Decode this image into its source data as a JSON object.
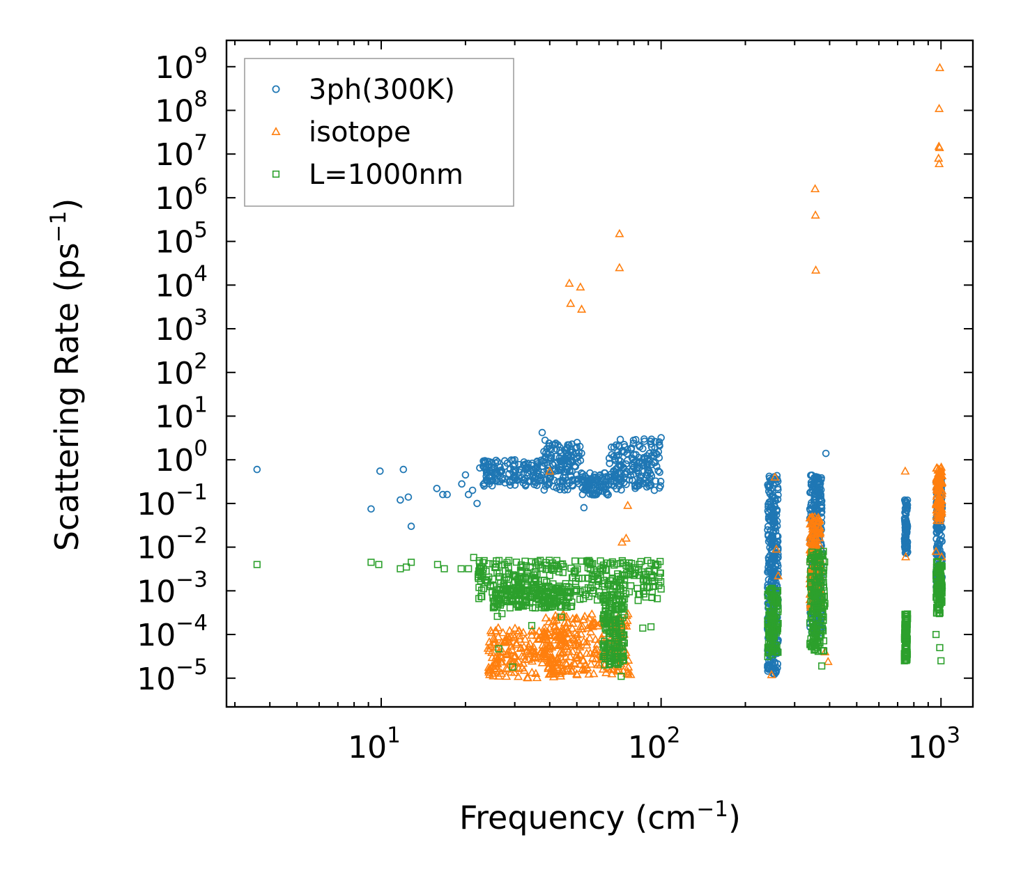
{
  "chart_data": {
    "type": "scatter",
    "xscale": "log",
    "yscale": "log",
    "xlim": [
      2.8,
      1300
    ],
    "ylim": [
      2.2e-06,
      4000000000
    ],
    "xlabel": "Frequency (cm",
    "xlabel_sup": "−1",
    "xlabel_end": ")",
    "ylabel": "Scattering Rate (ps",
    "ylabel_sup": "−1",
    "ylabel_end": ")",
    "x_ticks": [
      {
        "base": "10",
        "exp": "1",
        "value": 10
      },
      {
        "base": "10",
        "exp": "2",
        "value": 100
      },
      {
        "base": "10",
        "exp": "3",
        "value": 1000
      }
    ],
    "y_ticks": [
      {
        "base": "10",
        "exp": "9",
        "value": 1000000000.0
      },
      {
        "base": "10",
        "exp": "8",
        "value": 100000000.0
      },
      {
        "base": "10",
        "exp": "7",
        "value": 10000000.0
      },
      {
        "base": "10",
        "exp": "6",
        "value": 1000000.0
      },
      {
        "base": "10",
        "exp": "5",
        "value": 100000.0
      },
      {
        "base": "10",
        "exp": "4",
        "value": 10000.0
      },
      {
        "base": "10",
        "exp": "3",
        "value": 1000.0
      },
      {
        "base": "10",
        "exp": "2",
        "value": 100.0
      },
      {
        "base": "10",
        "exp": "1",
        "value": 10
      },
      {
        "base": "10",
        "exp": "0",
        "value": 1
      },
      {
        "base": "10",
        "exp": "−1",
        "value": 0.1
      },
      {
        "base": "10",
        "exp": "−2",
        "value": 0.01
      },
      {
        "base": "10",
        "exp": "−3",
        "value": 0.001
      },
      {
        "base": "10",
        "exp": "−4",
        "value": 0.0001
      },
      {
        "base": "10",
        "exp": "−5",
        "value": 1e-05
      }
    ],
    "legend_position": "top-left",
    "series": [
      {
        "name": "3ph(300K)",
        "marker": "circle",
        "color": "#1f77b4",
        "points": [
          [
            3.6,
            0.6
          ],
          [
            9.2,
            0.075
          ],
          [
            9.9,
            0.55
          ],
          [
            11.7,
            0.12
          ],
          [
            12.0,
            0.6
          ],
          [
            12.5,
            0.14
          ],
          [
            12.8,
            0.03
          ],
          [
            15.8,
            0.22
          ],
          [
            16.6,
            0.16
          ],
          [
            17.2,
            0.16
          ],
          [
            19.4,
            0.28
          ],
          [
            20.0,
            0.45
          ],
          [
            20.5,
            0.16
          ],
          [
            21.2,
            0.2
          ],
          [
            22.0,
            0.1
          ],
          [
            22.5,
            0.65
          ],
          [
            24.0,
            0.32
          ],
          [
            25.0,
            0.5
          ],
          [
            27.0,
            0.35
          ],
          [
            30.0,
            0.8
          ],
          [
            33.0,
            0.6
          ],
          [
            36.0,
            0.5
          ],
          [
            37.6,
            4.2
          ],
          [
            38.5,
            2.8
          ],
          [
            40.0,
            1.8
          ],
          [
            42.0,
            1.2
          ],
          [
            44.0,
            0.9
          ],
          [
            46.0,
            0.7
          ],
          [
            48.0,
            0.55
          ],
          [
            50.0,
            0.45
          ],
          [
            52.0,
            0.35
          ],
          [
            53.0,
            0.08
          ],
          [
            55.0,
            0.3
          ],
          [
            58.0,
            0.3
          ],
          [
            62.0,
            0.35
          ],
          [
            66.0,
            0.4
          ],
          [
            70.0,
            0.5
          ],
          [
            75.0,
            0.8
          ],
          [
            80.0,
            1.3
          ],
          [
            86.0,
            1.8
          ],
          [
            92.0,
            2.3
          ],
          [
            100.0,
            3.2
          ],
          [
            388.0,
            1.4
          ]
        ],
        "bands": [
          {
            "x_from": 23,
            "x_to": 38,
            "y_from": 0.25,
            "y_to": 1.0
          },
          {
            "x_from": 38,
            "x_to": 52,
            "y_from": 0.2,
            "y_to": 2.5
          },
          {
            "x_from": 52,
            "x_to": 65,
            "y_from": 0.15,
            "y_to": 0.5
          },
          {
            "x_from": 65,
            "x_to": 100,
            "y_from": 0.2,
            "y_to": 3.0
          },
          {
            "x_from": 240,
            "x_to": 262,
            "y_from": 1.2e-05,
            "y_to": 0.45
          },
          {
            "x_from": 340,
            "x_to": 375,
            "y_from": 0.0001,
            "y_to": 0.45
          },
          {
            "x_from": 740,
            "x_to": 760,
            "y_from": 0.007,
            "y_to": 0.12
          },
          {
            "x_from": 960,
            "x_to": 1010,
            "y_from": 0.001,
            "y_to": 0.4
          }
        ]
      },
      {
        "name": "isotope",
        "marker": "triangle",
        "color": "#ff7f0e",
        "points": [
          [
            47.0,
            11000
          ],
          [
            47.5,
            3800
          ],
          [
            51.5,
            9000
          ],
          [
            52.0,
            2800
          ],
          [
            71.0,
            150000
          ],
          [
            71.0,
            25000
          ],
          [
            72.5,
            0.013
          ],
          [
            75.0,
            0.016
          ],
          [
            76.0,
            0.09
          ],
          [
            40.0,
            0.55
          ],
          [
            355.0,
            1600000
          ],
          [
            356.0,
            400000
          ],
          [
            357.0,
            22000
          ],
          [
            255.0,
            0.4
          ],
          [
            258.0,
            0.009
          ],
          [
            262.0,
            0.0022
          ],
          [
            248.0,
            1.2e-05
          ],
          [
            745.0,
            0.55
          ],
          [
            748.0,
            0.006
          ],
          [
            960.0,
            0.008
          ],
          [
            980.0,
            8000000
          ],
          [
            985.0,
            6000000
          ],
          [
            983.0,
            15000000
          ],
          [
            988.0,
            14000000
          ],
          [
            985.0,
            110000000
          ],
          [
            990.0,
            950000000
          ],
          [
            1005.0,
            0.006
          ],
          [
            395.0,
            2.4e-05
          ],
          [
            385.0,
            4e-05
          ],
          [
            28.0,
            1.7e-05
          ]
        ],
        "bands": [
          {
            "x_from": 24,
            "x_to": 45,
            "y_from": 1e-05,
            "y_to": 0.00015
          },
          {
            "x_from": 38,
            "x_to": 78,
            "y_from": 1.2e-05,
            "y_to": 0.0003
          },
          {
            "x_from": 340,
            "x_to": 372,
            "y_from": 0.0004,
            "y_to": 0.05
          },
          {
            "x_from": 960,
            "x_to": 1010,
            "y_from": 0.04,
            "y_to": 0.7
          }
        ]
      },
      {
        "name": "L=1000nm",
        "marker": "square",
        "color": "#2ca02c",
        "points": [
          [
            3.6,
            0.004
          ],
          [
            9.2,
            0.0045
          ],
          [
            9.8,
            0.004
          ],
          [
            11.7,
            0.0032
          ],
          [
            12.3,
            0.0035
          ],
          [
            12.8,
            0.0045
          ],
          [
            15.9,
            0.004
          ],
          [
            16.8,
            0.0032
          ],
          [
            19.3,
            0.0032
          ],
          [
            20.5,
            0.0032
          ],
          [
            21.4,
            0.0058
          ],
          [
            22.5,
            0.0035
          ],
          [
            26.0,
            0.00026
          ],
          [
            26.3,
            4.7e-05
          ],
          [
            27.0,
            0.0003
          ],
          [
            29.5,
            1.8e-05
          ],
          [
            34.5,
            0.00016
          ],
          [
            44.0,
            0.00025
          ],
          [
            86.0,
            0.00014
          ],
          [
            92.0,
            0.00015
          ],
          [
            100.0,
            0.0011
          ],
          [
            72.0,
            1.1e-05
          ],
          [
            375.0,
            1.9e-05
          ],
          [
            380.0,
            0.008
          ],
          [
            740.0,
            2.5e-05
          ],
          [
            990.0,
            5e-05
          ],
          [
            1000.0,
            2.5e-05
          ],
          [
            960.0,
            0.0001
          ]
        ],
        "bands": [
          {
            "x_from": 22,
            "x_to": 100,
            "y_from": 0.0006,
            "y_to": 0.005
          },
          {
            "x_from": 25,
            "x_to": 48,
            "y_from": 0.0004,
            "y_to": 0.0012
          },
          {
            "x_from": 62,
            "x_to": 74,
            "y_from": 2e-05,
            "y_to": 0.0009
          },
          {
            "x_from": 240,
            "x_to": 262,
            "y_from": 3e-05,
            "y_to": 0.0012
          },
          {
            "x_from": 340,
            "x_to": 385,
            "y_from": 4e-05,
            "y_to": 0.008
          },
          {
            "x_from": 740,
            "x_to": 760,
            "y_from": 2.5e-05,
            "y_to": 0.0003
          },
          {
            "x_from": 960,
            "x_to": 1010,
            "y_from": 0.0003,
            "y_to": 0.005
          }
        ]
      }
    ]
  }
}
